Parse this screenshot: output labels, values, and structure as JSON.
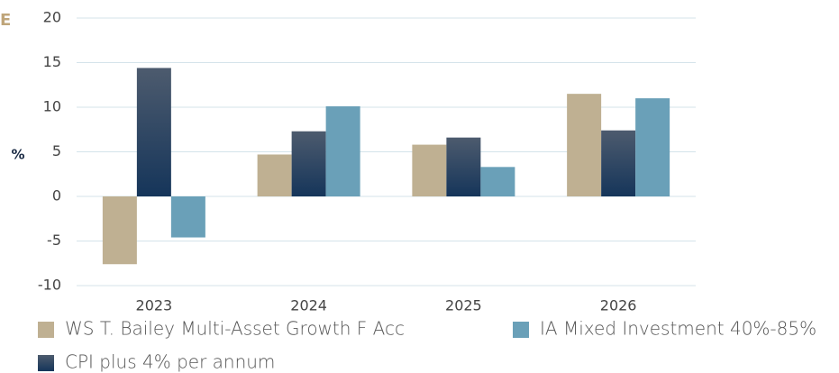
{
  "chart_data": {
    "type": "bar",
    "heading_fragment": "E",
    "y_label": "%",
    "categories": [
      "2023",
      "2024",
      "2025",
      "2026"
    ],
    "series": [
      {
        "name": "WS T. Bailey Multi-Asset Growth F Acc",
        "color": "#bfb092",
        "values": [
          -7.6,
          4.7,
          5.8,
          11.5
        ]
      },
      {
        "name": "CPI plus 4% per annum",
        "color": "#15355a",
        "values": [
          14.4,
          7.3,
          6.6,
          7.4
        ]
      },
      {
        "name": "IA Mixed Investment 40%-85%",
        "color": "#6aa0b8",
        "values": [
          -4.6,
          10.1,
          3.3,
          11.0
        ]
      }
    ],
    "ylim": [
      -10,
      20
    ],
    "yticks": [
      -10,
      -5,
      0,
      5,
      10,
      15,
      20
    ],
    "grid": true
  }
}
